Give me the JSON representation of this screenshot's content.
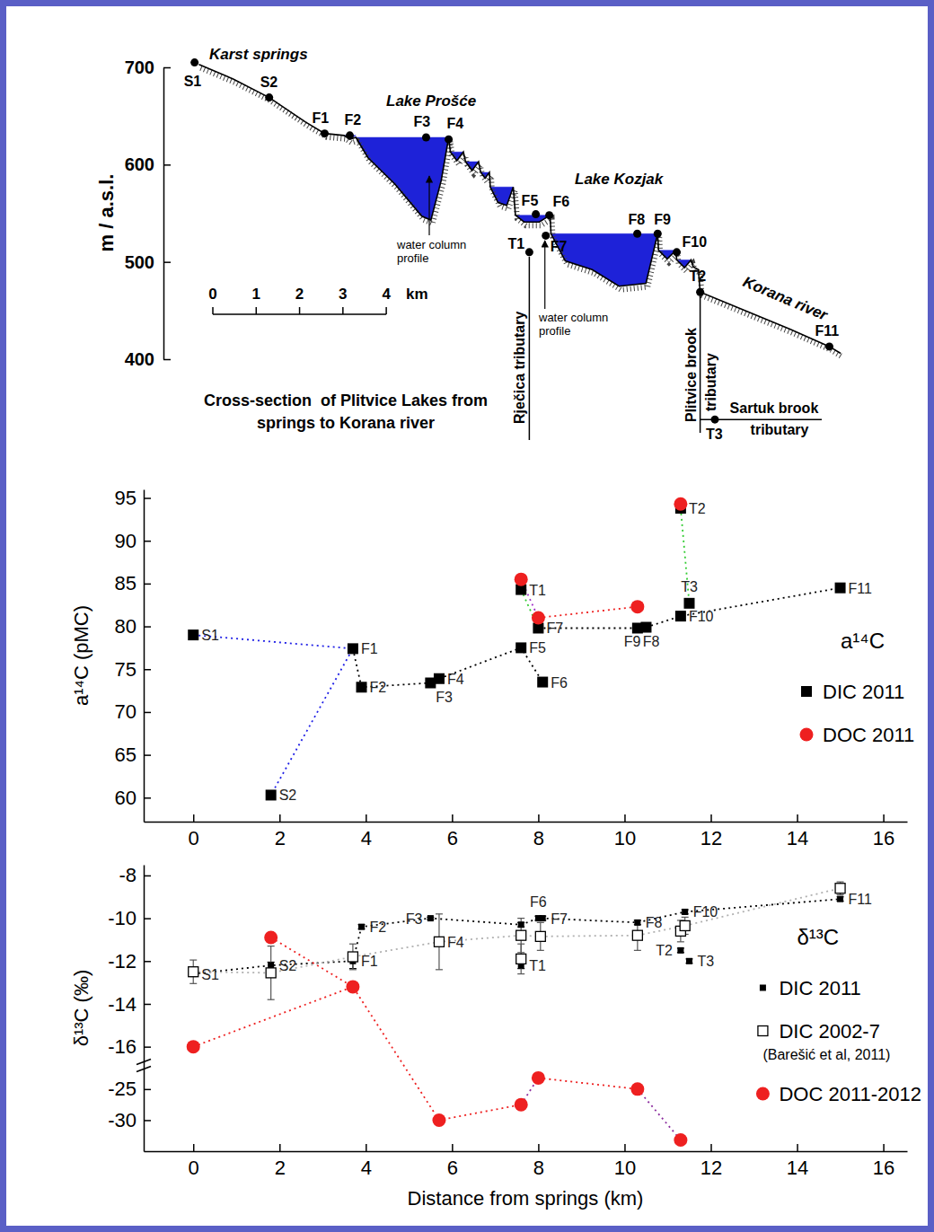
{
  "diagram": {
    "title": "Cross-section  of Plitvice Lakes from springs to Korana river",
    "ylabel": "m / a.s.l.",
    "xlim": [
      -0.2,
      15.5
    ],
    "ylim": [
      400,
      700
    ],
    "yticks": [
      400,
      500,
      600,
      700
    ],
    "terrain": {
      "x": [
        0.1,
        0.89,
        1.72,
        2.55,
        3.0,
        3.45,
        3.58,
        3.72,
        4.0,
        4.62,
        5.24,
        5.45,
        5.69,
        5.86,
        5.9,
        6.05,
        6.2,
        6.25,
        6.4,
        6.55,
        6.6,
        6.7,
        6.8,
        6.82,
        7.0,
        7.2,
        7.35,
        7.4,
        7.6,
        7.95,
        8.2,
        8.22,
        8.55,
        9.17,
        9.79,
        10.41,
        10.68,
        10.7,
        10.9,
        11.1,
        11.12,
        11.3,
        11.45,
        11.5,
        11.62,
        11.66,
        12.69,
        13.73,
        14.64,
        14.9
      ],
      "elevation": [
        703,
        688,
        669,
        644,
        632,
        630,
        626,
        628,
        607,
        580,
        547,
        543,
        584,
        628,
        613,
        604,
        613,
        603,
        594,
        603,
        592,
        586,
        592,
        577,
        561,
        558,
        577,
        548,
        541,
        541,
        548,
        529,
        501,
        492,
        475,
        478,
        529,
        512,
        503,
        512,
        502,
        494,
        502,
        495,
        492,
        469,
        450,
        431,
        413,
        406
      ]
    },
    "lakes": [
      {
        "level": 630,
        "x": [
          3.45,
          3.58,
          3.72
        ],
        "bottom": [
          630,
          626,
          630
        ]
      },
      {
        "level": 628,
        "x": [
          3.72,
          4.0,
          4.62,
          5.24,
          5.45,
          5.69,
          5.86
        ],
        "bottom": [
          628,
          607,
          580,
          547,
          543,
          584,
          628
        ]
      },
      {
        "level": 613,
        "x": [
          5.9,
          6.05,
          6.2
        ],
        "bottom": [
          613,
          604,
          613
        ]
      },
      {
        "level": 603,
        "x": [
          6.25,
          6.4,
          6.55
        ],
        "bottom": [
          603,
          594,
          603
        ]
      },
      {
        "level": 592,
        "x": [
          6.6,
          6.7,
          6.8
        ],
        "bottom": [
          592,
          586,
          592
        ]
      },
      {
        "level": 577,
        "x": [
          6.82,
          7.0,
          7.2,
          7.35
        ],
        "bottom": [
          577,
          561,
          558,
          577
        ]
      },
      {
        "level": 548,
        "x": [
          7.4,
          7.6,
          7.95,
          8.2
        ],
        "bottom": [
          548,
          541,
          541,
          548
        ]
      },
      {
        "level": 529,
        "x": [
          8.22,
          8.55,
          9.17,
          9.79,
          10.41,
          10.68
        ],
        "bottom": [
          529,
          501,
          492,
          475,
          478,
          529
        ]
      },
      {
        "level": 512,
        "x": [
          10.7,
          10.9,
          11.1
        ],
        "bottom": [
          512,
          503,
          512
        ]
      },
      {
        "level": 502,
        "x": [
          11.12,
          11.3,
          11.45
        ],
        "bottom": [
          502,
          494,
          502
        ]
      }
    ],
    "sites": [
      {
        "label": "S1",
        "x": 0,
        "elevation": 705
      },
      {
        "label": "S2",
        "x": 1.72,
        "elevation": 669
      },
      {
        "label": "F1",
        "x": 3.0,
        "elevation": 632
      },
      {
        "label": "F2",
        "x": 3.58,
        "elevation": 630
      },
      {
        "label": "F3",
        "x": 5.34,
        "elevation": 628
      },
      {
        "label": "F4",
        "x": 5.86,
        "elevation": 626
      },
      {
        "label": "F5",
        "x": 7.87,
        "elevation": 549
      },
      {
        "label": "F6",
        "x": 8.18,
        "elevation": 548
      },
      {
        "label": "F7",
        "x": 8.1,
        "elevation": 527
      },
      {
        "label": "T1",
        "x": 7.72,
        "elevation": 510
      },
      {
        "label": "F8",
        "x": 10.21,
        "elevation": 529
      },
      {
        "label": "F9",
        "x": 10.68,
        "elevation": 529
      },
      {
        "label": "F10",
        "x": 11.12,
        "elevation": 510
      },
      {
        "label": "T2",
        "x": 11.66,
        "elevation": 469
      },
      {
        "label": "F11",
        "x": 14.64,
        "elevation": 413
      },
      {
        "label": "T3",
        "x": 12.0,
        "elevation": 338
      }
    ],
    "place_names": [
      "Karst springs",
      "Lake Prošće",
      "Lake Kozjak",
      "Korana river"
    ],
    "profile_notes": [
      "water column profile",
      "water column profile"
    ],
    "tributaries": [
      "Rječica tributary",
      "Plitvice brook tributary",
      "Sartuk brook tributary"
    ],
    "scale_bar": {
      "ticks": [
        0,
        1,
        2,
        3,
        4
      ],
      "unit": "km"
    }
  },
  "chart_data": [
    {
      "type": "scatter",
      "ylabel": "a¹⁴C (pMC)",
      "legend_title": "a¹⁴C",
      "legend": "right",
      "xlim": [
        -1.15,
        16.55
      ],
      "xticks": [
        0,
        2,
        4,
        6,
        8,
        10,
        12,
        14,
        16
      ],
      "ylim": [
        57.2,
        96
      ],
      "yticks": [
        60,
        65,
        70,
        75,
        80,
        85,
        90,
        95
      ],
      "series": [
        {
          "name": "DIC 2011",
          "color": "#000000",
          "marker": "square",
          "x": [
            0,
            1.8,
            3.7,
            3.9,
            5.5,
            5.7,
            7.6,
            7.6,
            8.0,
            8.1,
            10.3,
            10.5,
            11.3,
            11.3,
            11.5,
            15.0
          ],
          "values": [
            79.0,
            60.3,
            77.4,
            72.9,
            73.4,
            73.9,
            77.5,
            84.3,
            79.8,
            73.5,
            79.8,
            79.9,
            81.2,
            93.8,
            82.7,
            84.5
          ],
          "labels": [
            "S1",
            "S2",
            "F1",
            "F2",
            "F3",
            "F4",
            "F5",
            "T1",
            "F7",
            "F6",
            "F8",
            "F9",
            "F10",
            "T2",
            "T3",
            "F11"
          ]
        },
        {
          "name": "DOC 2011",
          "color": "#ee2020",
          "marker": "circle",
          "x": [
            7.6,
            8.0,
            10.3,
            11.3
          ],
          "values": [
            85.5,
            81.0,
            82.3,
            94.3
          ]
        }
      ],
      "lines": [
        {
          "color": "#1f1fe6",
          "line_style": "dotted",
          "x": [
            0,
            3.7,
            1.8
          ],
          "values": [
            79.0,
            77.4,
            60.3
          ]
        },
        {
          "color": "#000000",
          "line_style": "dotted",
          "x": [
            3.7,
            3.9,
            5.5,
            5.7,
            7.6,
            8.1
          ],
          "values": [
            77.4,
            72.9,
            73.4,
            73.9,
            77.5,
            73.5
          ]
        },
        {
          "color": "#000000",
          "line_style": "dotted",
          "x": [
            8.0,
            10.3,
            10.5,
            11.3,
            15.0
          ],
          "values": [
            79.8,
            79.8,
            79.9,
            81.2,
            84.5
          ]
        },
        {
          "color": "#a030c8",
          "line_style": "dotted",
          "x": [
            7.6,
            8.0
          ],
          "values": [
            85.5,
            81.0
          ]
        },
        {
          "color": "#33cc33",
          "line_style": "dotted",
          "x": [
            7.6,
            8.0
          ],
          "values": [
            84.3,
            79.8
          ]
        },
        {
          "color": "#ee2020",
          "line_style": "dotted",
          "x": [
            8.0,
            10.3
          ],
          "values": [
            81.0,
            82.3
          ]
        },
        {
          "color": "#33cc33",
          "line_style": "dotted",
          "x": [
            11.3,
            11.5
          ],
          "values": [
            93.8,
            82.7
          ]
        }
      ]
    },
    {
      "type": "scatter",
      "ylabel": "δ¹³C (‰)",
      "xlabel": "Distance from springs (km)",
      "legend_title": "δ¹³C",
      "legend": "right",
      "xlim": [
        -1.15,
        16.55
      ],
      "xticks": [
        0,
        2,
        4,
        6,
        8,
        10,
        12,
        14,
        16
      ],
      "ylim": [
        -35,
        -7.5
      ],
      "ybreak": [
        -22.5,
        -16.5
      ],
      "yticks": [
        -30,
        -25,
        -16,
        -14,
        -12,
        -10,
        -8
      ],
      "series": [
        {
          "name": "DIC 2011",
          "color": "#000000",
          "marker": "square",
          "x": [
            0,
            1.8,
            3.7,
            3.9,
            5.5,
            7.6,
            8.0,
            8.1,
            10.3,
            11.4,
            15.0,
            7.6,
            11.3,
            11.5
          ],
          "values": [
            -12.6,
            -12.2,
            -12.0,
            -10.4,
            -10.0,
            -10.3,
            -10.0,
            -10.0,
            -10.2,
            -9.7,
            -9.1,
            -12.2,
            -11.5,
            -12.0
          ],
          "errors": [
            0.1,
            0.15,
            0.35,
            0.1,
            0.05,
            0.1,
            0.1,
            0.1,
            0.1,
            0.1,
            0.1,
            0.15,
            0.1,
            0.1
          ],
          "labels": [
            "S1",
            "S2",
            "F1",
            "F2",
            "F3",
            null,
            "F6",
            "F7",
            "F8",
            "F10",
            "F11",
            "T1",
            "T2",
            "T3"
          ]
        },
        {
          "name": "DIC 2002-7",
          "source": "(Barešić et al, 2011)",
          "color": "#000000",
          "marker": "open-square",
          "x": [
            0,
            1.8,
            3.7,
            5.7,
            7.6,
            7.6,
            8.05,
            10.3,
            11.3,
            11.4,
            15.0
          ],
          "values": [
            -12.5,
            -12.55,
            -11.8,
            -11.1,
            -10.8,
            -11.9,
            -10.85,
            -10.8,
            -10.6,
            -10.35,
            -8.6
          ],
          "errors": [
            0.55,
            1.25,
            0.6,
            1.3,
            0.8,
            0.7,
            0.65,
            0.7,
            0.5,
            0.4,
            0.3
          ],
          "labels": [
            null,
            null,
            null,
            "F4",
            null,
            null,
            null,
            null,
            null,
            null,
            null
          ]
        },
        {
          "name": "DOC 2011-2012",
          "color": "#ee2020",
          "marker": "circle",
          "x": [
            0,
            1.8,
            3.7,
            5.7,
            7.6,
            8.0,
            10.3,
            11.3
          ],
          "values": [
            -16.0,
            -10.9,
            -13.2,
            -30.0,
            -27.5,
            -23.2,
            -25.0,
            -33.2
          ]
        }
      ],
      "lines": [
        {
          "color": "#000000",
          "line_style": "dotted",
          "x": [
            0,
            1.8,
            3.7,
            3.9,
            5.5,
            7.6,
            8.0,
            8.1,
            10.3,
            11.4,
            15.0
          ],
          "values": [
            -12.6,
            -12.2,
            -12.0,
            -10.4,
            -10.0,
            -10.3,
            -10.0,
            -10.0,
            -10.2,
            -9.7,
            -9.1
          ]
        },
        {
          "color": "#b0b0b0",
          "line_style": "dotted",
          "x": [
            0,
            1.8,
            3.7,
            5.7,
            7.6,
            8.05,
            10.3,
            11.4,
            15.0
          ],
          "values": [
            -12.5,
            -12.55,
            -11.8,
            -11.1,
            -10.8,
            -10.85,
            -10.8,
            -10.35,
            -8.6
          ]
        },
        {
          "color": "#ee2020",
          "line_style": "dotted",
          "x": [
            0,
            3.7
          ],
          "values": [
            -16.0,
            -13.2
          ]
        },
        {
          "color": "#ee2020",
          "line_style": "dotted",
          "x": [
            1.8,
            3.7,
            5.7,
            7.6
          ],
          "values": [
            -10.9,
            -13.2,
            -30.0,
            -27.5
          ]
        },
        {
          "color": "#8b2b9e",
          "line_style": "dotted",
          "x": [
            7.6,
            8.0
          ],
          "values": [
            -27.5,
            -23.2
          ]
        },
        {
          "color": "#ee2020",
          "line_style": "dotted",
          "x": [
            8.0,
            10.3
          ],
          "values": [
            -23.2,
            -25.0
          ]
        },
        {
          "color": "#8b2b9e",
          "line_style": "dotted",
          "x": [
            10.3,
            11.3
          ],
          "values": [
            -25.0,
            -33.2
          ]
        }
      ]
    }
  ]
}
